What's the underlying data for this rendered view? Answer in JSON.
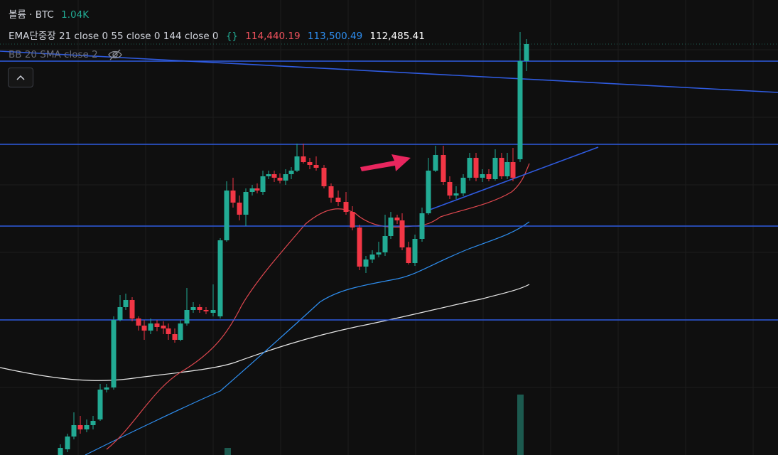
{
  "header": {
    "symbol": "볼륨 · BTC",
    "volume": "1.04K"
  },
  "indicators": [
    {
      "name": "EMA단중장 21 close 0 55 close 0 144 close 0",
      "values": [
        "114,440.19",
        "113,500.49",
        "112,485.41"
      ]
    },
    {
      "name": "BB 20 SMA close 2"
    }
  ]
}
